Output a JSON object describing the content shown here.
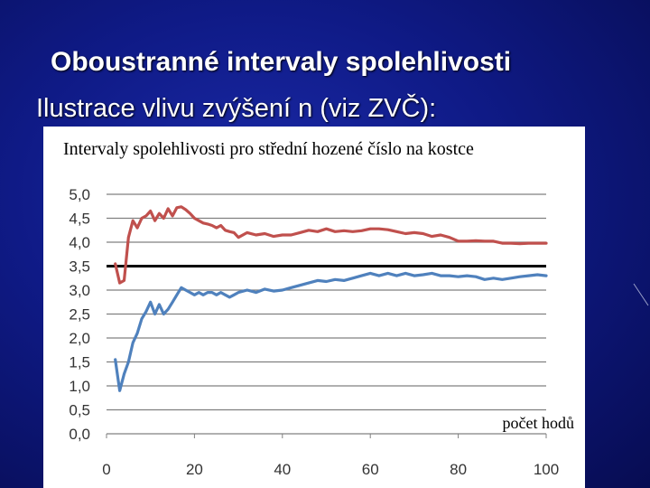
{
  "slide": {
    "title": "Oboustranné intervaly spolehlivosti",
    "subtitle": "Ilustrace vlivu zvýšení n (viz ZVČ):"
  },
  "colors": {
    "background": "#0f1a86",
    "upper_series": "#c0504d",
    "lower_series": "#4f81bd",
    "reference_line": "#000000",
    "grid": "#808080"
  },
  "chart_data": {
    "type": "line",
    "title": "Intervaly spolehlivosti pro střední hozené číslo na kostce",
    "xlabel": "počet hodů",
    "ylabel": "",
    "xlim": [
      0,
      100
    ],
    "ylim": [
      0,
      5
    ],
    "x_ticks": [
      "0",
      "20",
      "40",
      "60",
      "80",
      "100"
    ],
    "y_ticks": [
      "0,0",
      "0,5",
      "1,0",
      "1,5",
      "2,0",
      "2,5",
      "3,0",
      "3,5",
      "4,0",
      "4,5",
      "5,0"
    ],
    "grid": true,
    "reference_line": {
      "y": 3.5
    },
    "series": [
      {
        "x": [
          2,
          3,
          4,
          5,
          6,
          7,
          8,
          9,
          10,
          11,
          12,
          13,
          14,
          15,
          16,
          17,
          18,
          19,
          20,
          21,
          22,
          23,
          24,
          25,
          26,
          27,
          28,
          29,
          30,
          32,
          34,
          36,
          38,
          40,
          42,
          44,
          46,
          48,
          50,
          52,
          54,
          56,
          58,
          60,
          62,
          64,
          66,
          68,
          70,
          72,
          74,
          76,
          78,
          80,
          82,
          84,
          86,
          88,
          90,
          92,
          94,
          96,
          98,
          100
        ],
        "values": [
          3.55,
          3.15,
          3.2,
          4.1,
          4.45,
          4.3,
          4.5,
          4.55,
          4.65,
          4.45,
          4.6,
          4.5,
          4.7,
          4.55,
          4.72,
          4.74,
          4.68,
          4.6,
          4.5,
          4.45,
          4.4,
          4.38,
          4.35,
          4.3,
          4.35,
          4.25,
          4.22,
          4.2,
          4.1,
          4.2,
          4.15,
          4.18,
          4.12,
          4.15,
          4.15,
          4.2,
          4.25,
          4.22,
          4.28,
          4.22,
          4.24,
          4.22,
          4.24,
          4.28,
          4.28,
          4.26,
          4.22,
          4.18,
          4.2,
          4.18,
          4.12,
          4.15,
          4.1,
          4.02,
          4.02,
          4.03,
          4.02,
          4.02,
          3.98,
          3.98,
          3.97,
          3.98,
          3.98,
          3.98
        ]
      },
      {
        "x": [
          2,
          3,
          4,
          5,
          6,
          7,
          8,
          9,
          10,
          11,
          12,
          13,
          14,
          15,
          16,
          17,
          18,
          19,
          20,
          21,
          22,
          23,
          24,
          25,
          26,
          27,
          28,
          29,
          30,
          32,
          34,
          36,
          38,
          40,
          42,
          44,
          46,
          48,
          50,
          52,
          54,
          56,
          58,
          60,
          62,
          64,
          66,
          68,
          70,
          72,
          74,
          76,
          78,
          80,
          82,
          84,
          86,
          88,
          90,
          92,
          94,
          96,
          98,
          100
        ],
        "values": [
          1.55,
          0.9,
          1.25,
          1.5,
          1.9,
          2.1,
          2.4,
          2.55,
          2.75,
          2.5,
          2.7,
          2.5,
          2.6,
          2.75,
          2.9,
          3.05,
          3.0,
          2.95,
          2.9,
          2.95,
          2.9,
          2.95,
          2.95,
          2.9,
          2.95,
          2.9,
          2.85,
          2.9,
          2.95,
          3.0,
          2.95,
          3.02,
          2.98,
          3.0,
          3.05,
          3.1,
          3.15,
          3.2,
          3.18,
          3.22,
          3.2,
          3.25,
          3.3,
          3.35,
          3.3,
          3.35,
          3.3,
          3.35,
          3.3,
          3.32,
          3.35,
          3.3,
          3.3,
          3.28,
          3.3,
          3.28,
          3.22,
          3.25,
          3.22,
          3.25,
          3.28,
          3.3,
          3.32,
          3.3
        ]
      }
    ]
  }
}
